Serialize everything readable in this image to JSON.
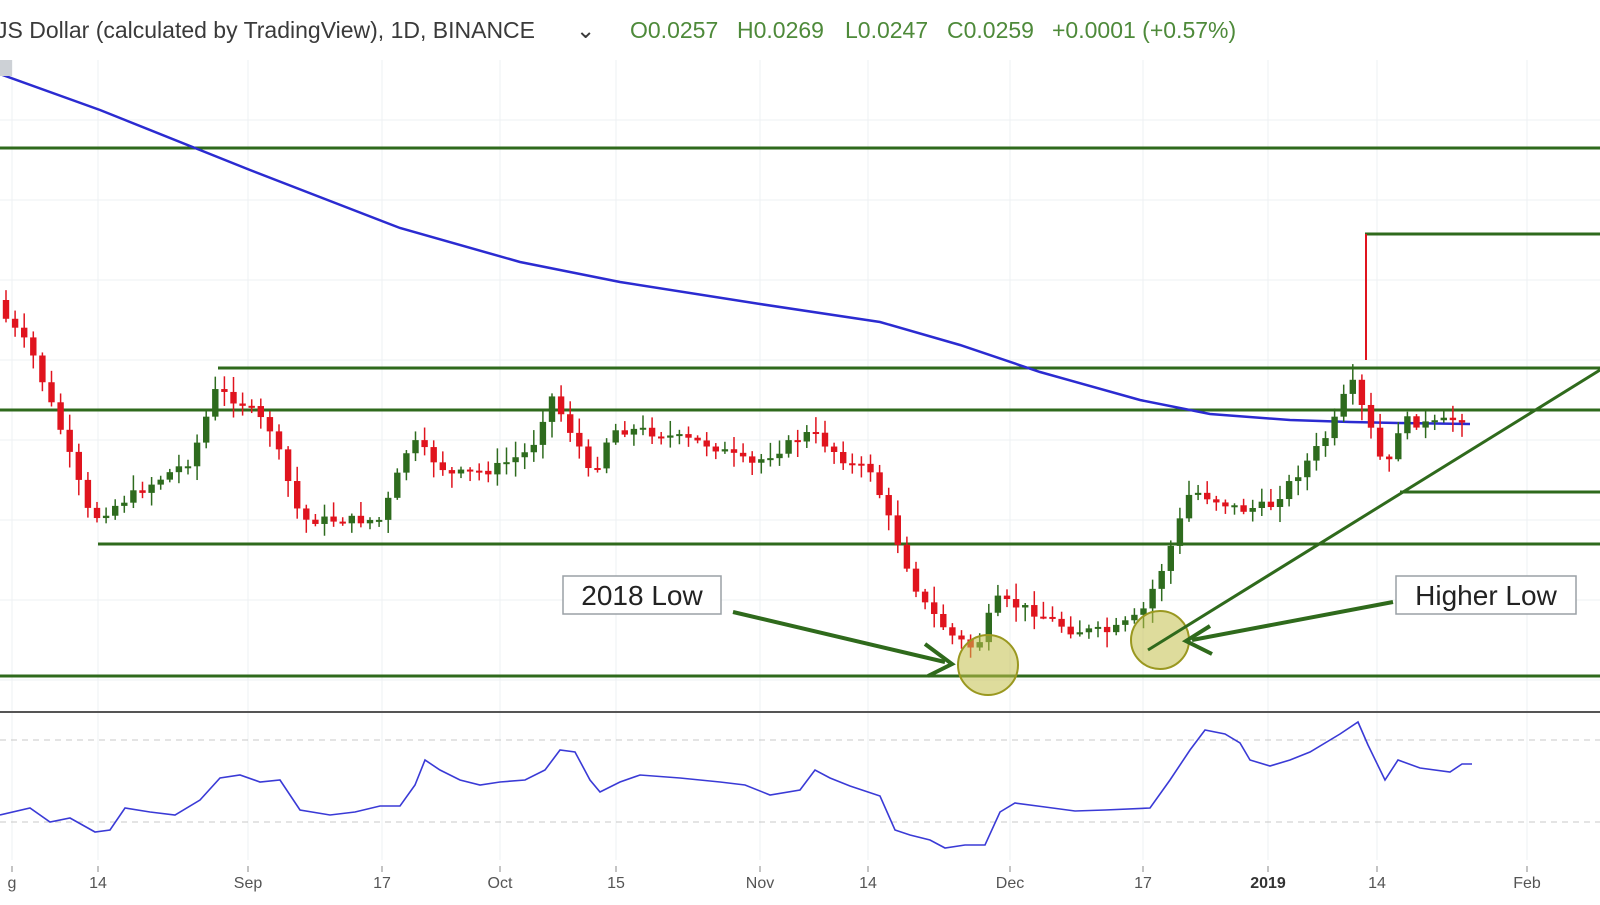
{
  "header": {
    "title": "JS Dollar (calculated by TradingView), 1D, BINANCE",
    "open": "O0.0257",
    "high": "H0.0269",
    "low": "L0.0247",
    "close": "C0.0259",
    "change": "+0.0001 (+0.57%)"
  },
  "colors": {
    "up": "#2e6b1e",
    "down": "#e0141e",
    "ma": "#2b2bd1",
    "levels": "#2f6a1c",
    "oscillator": "#3a3ad6",
    "highlight": "#c2c04a"
  },
  "chart_data": [
    {
      "type": "candlestick",
      "xaxis_ticks": [
        "g",
        "14",
        "Sep",
        "17",
        "Oct",
        "15",
        "Nov",
        "14",
        "Dec",
        "17",
        "2019",
        "14",
        "Feb"
      ],
      "annotations": [
        {
          "label": "2018 Low"
        },
        {
          "label": "Higher Low"
        }
      ],
      "horizontal_levels": 7,
      "trendline": "rising support from Dec 17 low",
      "moving_average": "declining, blue",
      "grid": true
    },
    {
      "type": "line",
      "panel": "lower oscillator",
      "guides": "two dashed horizontal lines"
    }
  ]
}
